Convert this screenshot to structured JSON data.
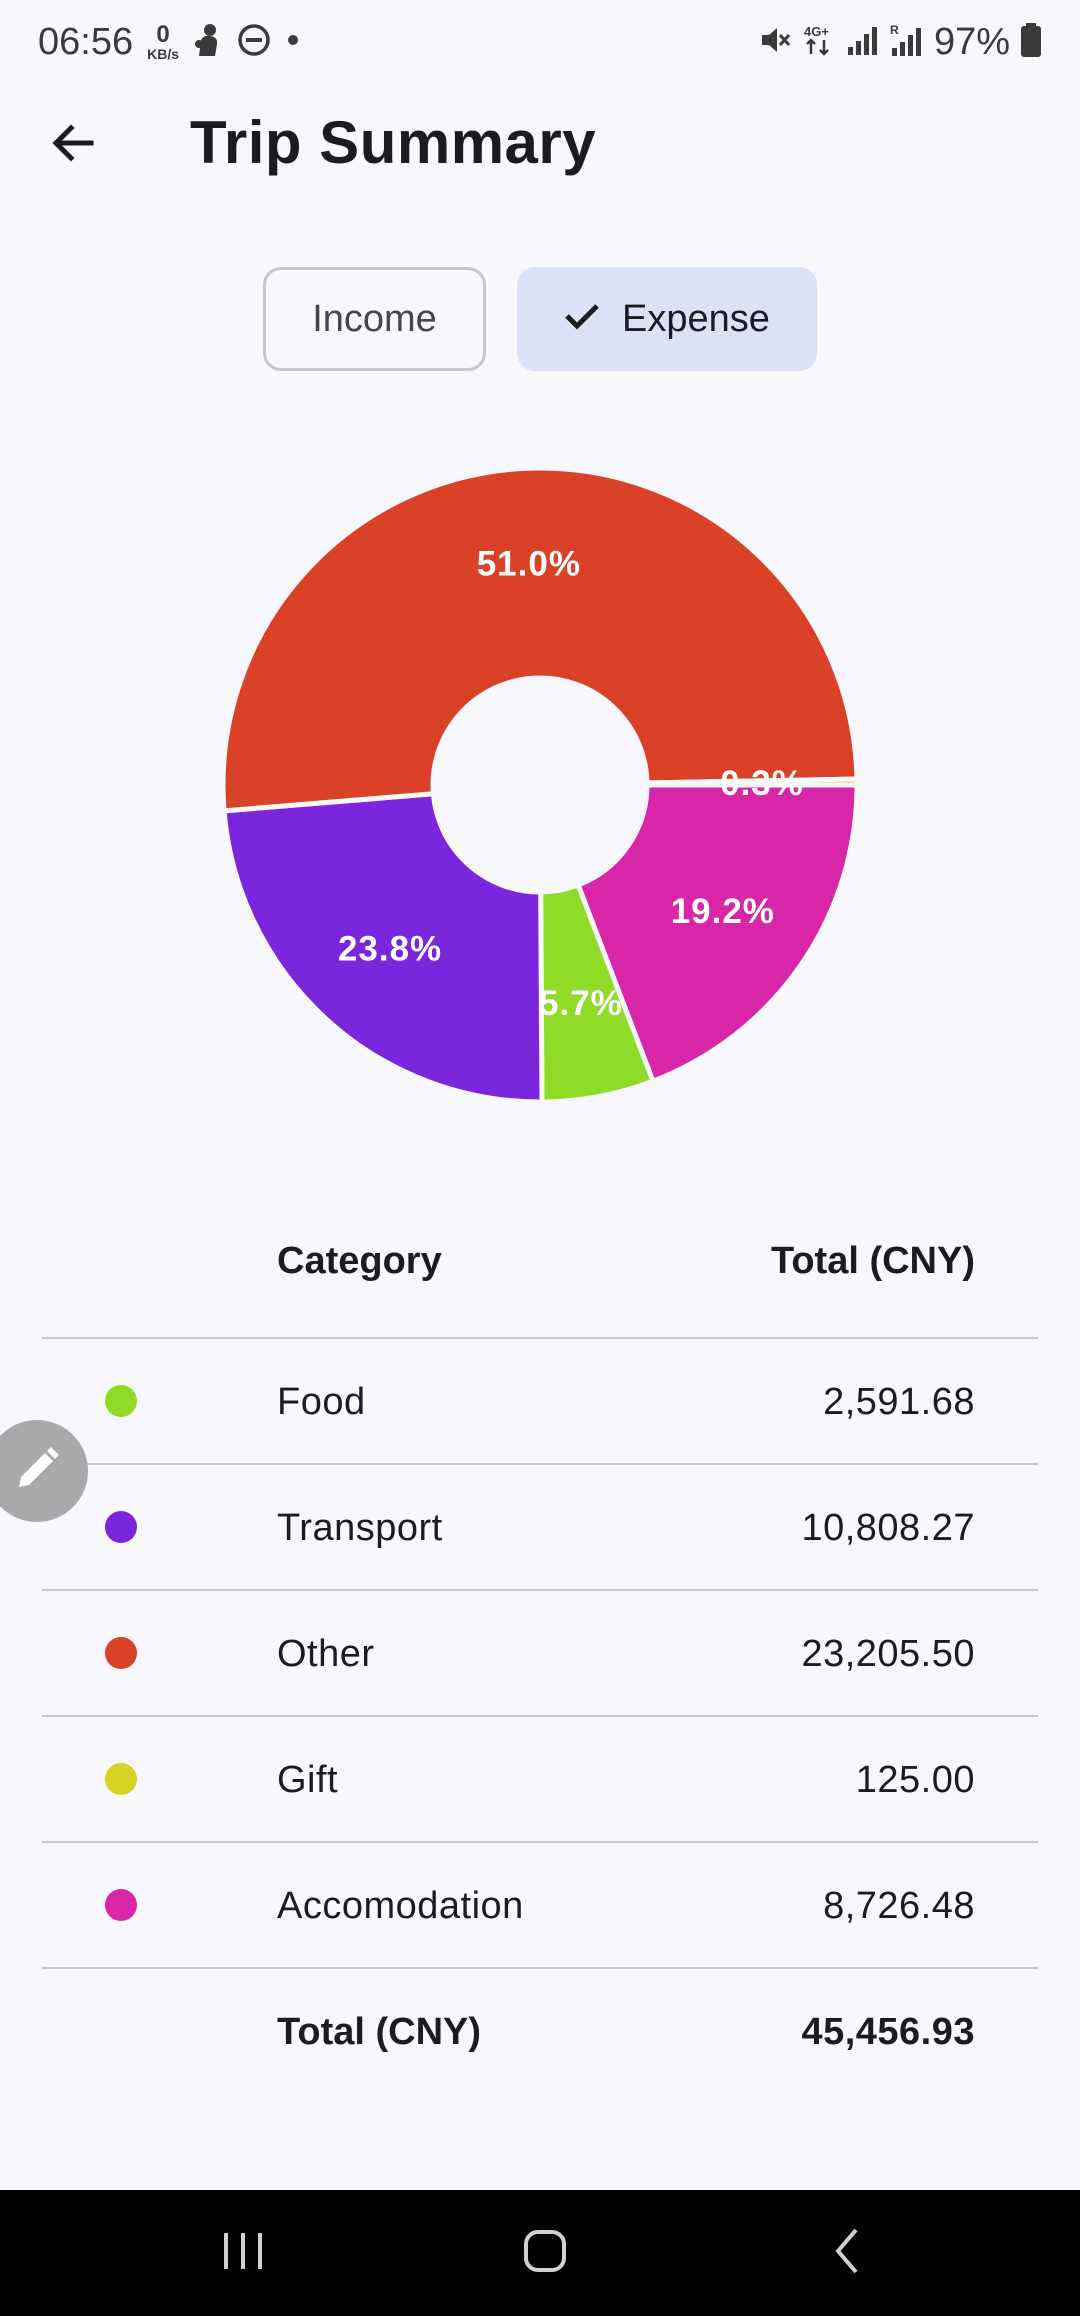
{
  "status_bar": {
    "time": "06:56",
    "net_speed_value": "0",
    "net_speed_unit": "KB/s",
    "battery": "97%"
  },
  "app_bar": {
    "title": "Trip Summary",
    "back_icon": "arrow-left-icon"
  },
  "toggle": {
    "income_label": "Income",
    "expense_label": "Expense",
    "selected": "Expense"
  },
  "chart_data": {
    "type": "pie",
    "hole": true,
    "categories": [
      "Accomodation",
      "Food",
      "Transport",
      "Other",
      "Gift"
    ],
    "values": [
      19.2,
      5.7,
      23.8,
      51.0,
      0.3
    ],
    "labels": [
      "19.2%",
      "5.7%",
      "23.8%",
      "51.0%",
      "0.3%"
    ],
    "colors": [
      "#d926a8",
      "#8edc28",
      "#7b26dc",
      "#d94226",
      "#d4d326"
    ]
  },
  "table": {
    "header_category": "Category",
    "header_total": "Total (CNY)",
    "rows": [
      {
        "category": "Food",
        "total": "2,591.68",
        "color": "#8edc28"
      },
      {
        "category": "Transport",
        "total": "10,808.27",
        "color": "#7b26dc"
      },
      {
        "category": "Other",
        "total": "23,205.50",
        "color": "#d94226"
      },
      {
        "category": "Gift",
        "total": "125.00",
        "color": "#d4d326"
      },
      {
        "category": "Accomodation",
        "total": "8,726.48",
        "color": "#d926a8"
      }
    ],
    "footer_label": "Total (CNY)",
    "footer_total": "45,456.93"
  },
  "fab": {
    "icon": "pencil-icon"
  },
  "nav_bar": {
    "icons": [
      "recent-apps-icon",
      "home-icon",
      "back-nav-icon"
    ]
  }
}
